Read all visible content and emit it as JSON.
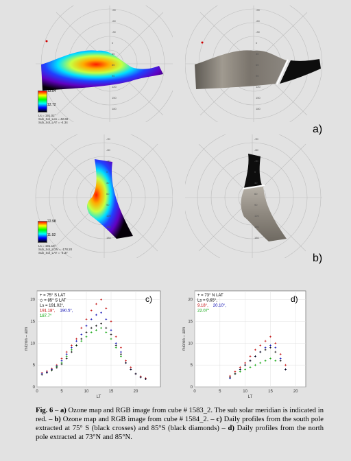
{
  "panel_labels": {
    "a": "a)",
    "b": "b)",
    "c": "c)",
    "d": "d)"
  },
  "maps": {
    "a_colorbar_ticks": [
      "13.84",
      "12.72"
    ],
    "a_info": [
      "Ls = 191.02°",
      "Sub_Sol_Lon = 42.69",
      "Sub_Sol_LAT = -4.34"
    ],
    "b_colorbar_ticks": [
      "22.98",
      "11.92"
    ],
    "b_info": [
      "Ls = 191.18°",
      "Sub_Sol_LON = -178.20",
      "Sub_Sol_LAT = -4.37"
    ],
    "polar_ticks_left": [
      "-90",
      "-60",
      "-30",
      "0",
      "30",
      "60",
      "90",
      "120",
      "150",
      "180"
    ],
    "polar_ticks_right": [
      "-90",
      "-60",
      "-30",
      "0",
      "30",
      "60",
      "90",
      "120",
      "150",
      "180"
    ]
  },
  "chart_data": [
    {
      "type": "scatter",
      "panel": "c)",
      "xlabel": "LT",
      "ylabel": "micron – atm",
      "xlim": [
        0,
        25
      ],
      "ylim": [
        0,
        22
      ],
      "xticks": [
        "0",
        "5",
        "10",
        "15",
        "20"
      ],
      "yticks": [
        "0",
        "5",
        "10",
        "15",
        "20"
      ],
      "legend": [
        "+ = 75° S LAT",
        "◇ = 85° S LAT",
        "Ls = 191.02°,",
        "191.18°,",
        "190.5°,",
        "187.7°"
      ],
      "series": [
        {
          "name": "191.18°",
          "color": "#c00000",
          "x": [
            1,
            2,
            3,
            4,
            5,
            6,
            7,
            8,
            9,
            10,
            11,
            12,
            13,
            14,
            15,
            16,
            17,
            18,
            19,
            20,
            21,
            22
          ],
          "y": [
            3.2,
            3.6,
            4.2,
            5.0,
            6.5,
            8.0,
            9.5,
            11.0,
            13.5,
            15.5,
            17.5,
            19.0,
            20.0,
            18.0,
            15.0,
            11.5,
            9.0,
            6.0,
            4.5,
            3.0,
            2.4,
            2.0
          ]
        },
        {
          "name": "190.5°",
          "color": "#0000b0",
          "x": [
            1,
            2,
            3,
            4,
            5,
            6,
            7,
            8,
            9,
            10,
            11,
            12,
            13,
            14,
            15,
            16,
            17,
            18,
            19,
            20,
            21,
            22
          ],
          "y": [
            3.0,
            3.4,
            4.0,
            4.8,
            6.0,
            7.5,
            9.0,
            10.5,
            12.0,
            14.0,
            15.5,
            16.5,
            17.0,
            15.5,
            13.0,
            10.0,
            8.0,
            5.5,
            4.0,
            3.0,
            2.2,
            1.8
          ]
        },
        {
          "name": "187.7°",
          "color": "#00a000",
          "x": [
            3,
            4,
            5,
            6,
            7,
            8,
            9,
            10,
            11,
            12,
            13,
            14,
            15,
            16,
            17
          ],
          "y": [
            3.8,
            4.6,
            5.5,
            7.0,
            8.5,
            9.5,
            10.5,
            11.5,
            12.5,
            13.0,
            13.5,
            12.5,
            11.0,
            9.0,
            7.0
          ]
        },
        {
          "name": "191.02°",
          "color": "#000000",
          "x": [
            1,
            2,
            3,
            4,
            5,
            6,
            7,
            8,
            9,
            10,
            11,
            12,
            13,
            14,
            15,
            16,
            17,
            18,
            19,
            20,
            21,
            22
          ],
          "y": [
            2.8,
            3.2,
            3.8,
            4.4,
            5.2,
            6.5,
            8.0,
            9.5,
            11.0,
            12.5,
            13.5,
            14.0,
            14.5,
            13.5,
            12.0,
            9.5,
            7.5,
            5.5,
            4.0,
            3.0,
            2.2,
            1.8
          ]
        }
      ]
    },
    {
      "type": "scatter",
      "panel": "d)",
      "xlabel": "LT",
      "ylabel": "micron – atm",
      "xlim": [
        0,
        22
      ],
      "ylim": [
        0,
        22
      ],
      "xticks": [
        "0",
        "5",
        "10",
        "15",
        "20"
      ],
      "yticks": [
        "0",
        "5",
        "10",
        "15",
        "20"
      ],
      "legend": [
        "+ = 73° N LAT",
        "Ls = 9.65°,",
        "9.18°,",
        "20.10°,",
        "22.07°"
      ],
      "series": [
        {
          "name": "9.18°",
          "color": "#c00000",
          "x": [
            7,
            8,
            9,
            10,
            11,
            12,
            13,
            14,
            15,
            16,
            17,
            18
          ],
          "y": [
            2.5,
            3.5,
            4.5,
            5.5,
            7.0,
            8.5,
            9.5,
            10.5,
            11.5,
            10.0,
            7.5,
            5.0
          ]
        },
        {
          "name": "20.10°",
          "color": "#0000b0",
          "x": [
            7,
            8,
            9,
            10,
            11,
            12,
            13,
            14,
            15,
            16,
            17,
            18
          ],
          "y": [
            2.0,
            3.0,
            4.0,
            5.0,
            6.0,
            7.0,
            8.0,
            9.0,
            9.5,
            9.0,
            6.5,
            4.0
          ]
        },
        {
          "name": "22.07°",
          "color": "#00a000",
          "x": [
            8,
            9,
            10,
            11,
            12,
            13,
            14,
            15,
            16
          ],
          "y": [
            3.0,
            3.5,
            4.0,
            4.5,
            5.0,
            5.5,
            6.0,
            6.5,
            6.0
          ]
        },
        {
          "name": "9.65°",
          "color": "#000000",
          "x": [
            7,
            8,
            9,
            10,
            11,
            12,
            13,
            14,
            15,
            16,
            17,
            18
          ],
          "y": [
            2.2,
            3.0,
            4.0,
            5.0,
            6.0,
            7.0,
            8.0,
            8.5,
            9.0,
            8.0,
            6.0,
            4.0
          ]
        }
      ]
    }
  ],
  "caption": {
    "fig": "Fig. 6",
    "p1": " – ",
    "a": "a)",
    "t1": " Ozone map and RGB image from cube # 1583_2. The sub solar meridian is indicated in red. – ",
    "b": "b)",
    "t2": " Ozone map and RGB image from cube # 1584_2. – ",
    "c": "c)",
    "t3": " Daily profiles from the south pole extracted at 75° S (black crosses) and 85°S (black diamonds) – ",
    "d": "d)",
    "t4": " Daily profiles from the north pole extracted at 73°N and 85°N."
  }
}
